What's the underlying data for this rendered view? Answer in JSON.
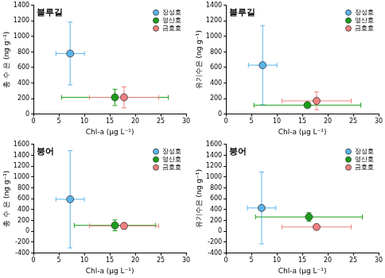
{
  "chart_data": [
    {
      "type": "scatter",
      "title": "블루길",
      "x_label": "Chl-a (μg L⁻¹)",
      "y_label": "총 수 은 (ng g⁻¹)",
      "xlim": [
        0,
        30
      ],
      "xticks": [
        0,
        5,
        10,
        15,
        20,
        25,
        30
      ],
      "ylim": [
        0,
        1400
      ],
      "yticks": [
        0,
        200,
        400,
        600,
        800,
        1000,
        1200,
        1400
      ],
      "grid": false,
      "legend": "upper right",
      "series": [
        {
          "name": "장성호",
          "color": "#5ab4e8",
          "marker": "circle",
          "x": [
            7.2
          ],
          "values": [
            780
          ],
          "x_error": [
            2.8
          ],
          "y_error": [
            405
          ]
        },
        {
          "name": "영산호",
          "color": "#1a9e1a",
          "marker": "circle",
          "x": [
            16
          ],
          "values": [
            215
          ],
          "x_error": [
            10.5
          ],
          "y_error": [
            105
          ]
        },
        {
          "name": "금호호",
          "color": "#f08080",
          "marker": "circle",
          "x": [
            17.8
          ],
          "values": [
            215
          ],
          "x_error": [
            6.8
          ],
          "y_error": [
            135
          ]
        }
      ]
    },
    {
      "type": "scatter",
      "title": "블루길",
      "x_label": "Chl-a (μg L⁻¹)",
      "y_label": "유기수은 (ng g⁻¹)",
      "xlim": [
        0,
        30
      ],
      "xticks": [
        0,
        5,
        10,
        15,
        20,
        25,
        30
      ],
      "ylim": [
        0,
        1400
      ],
      "yticks": [
        0,
        200,
        400,
        600,
        800,
        1000,
        1200,
        1400
      ],
      "grid": false,
      "legend": "upper right",
      "series": [
        {
          "name": "장성호",
          "color": "#5ab4e8",
          "marker": "circle",
          "x": [
            7.2
          ],
          "values": [
            630
          ],
          "x_error": [
            2.8
          ],
          "y_error": [
            510
          ]
        },
        {
          "name": "영산호",
          "color": "#1a9e1a",
          "marker": "circle",
          "x": [
            16
          ],
          "values": [
            115
          ],
          "x_error": [
            10.5
          ],
          "y_error": [
            20
          ]
        },
        {
          "name": "금호호",
          "color": "#f08080",
          "marker": "circle",
          "x": [
            17.8
          ],
          "values": [
            170
          ],
          "x_error": [
            6.8
          ],
          "y_error": [
            115
          ]
        }
      ]
    },
    {
      "type": "scatter",
      "title": "붕어",
      "x_label": "Chl-a (μg L⁻¹)",
      "y_label": "총 수 은 (ng g⁻¹)",
      "xlim": [
        0,
        30
      ],
      "xticks": [
        0,
        5,
        10,
        15,
        20,
        25,
        30
      ],
      "ylim": [
        -400,
        1600
      ],
      "yticks": [
        -400,
        -200,
        0,
        200,
        400,
        600,
        800,
        1000,
        1200,
        1400,
        1600
      ],
      "grid": false,
      "legend": "upper right",
      "series": [
        {
          "name": "장성호",
          "color": "#5ab4e8",
          "marker": "circle",
          "x": [
            7.2
          ],
          "values": [
            590
          ],
          "x_error": [
            2.8
          ],
          "y_error": [
            895
          ]
        },
        {
          "name": "영산호",
          "color": "#1a9e1a",
          "marker": "circle",
          "x": [
            16
          ],
          "values": [
            110
          ],
          "x_error": [
            8
          ],
          "y_error": [
            100
          ]
        },
        {
          "name": "금호호",
          "color": "#f08080",
          "marker": "circle",
          "x": [
            17.8
          ],
          "values": [
            100
          ],
          "x_error": [
            6.8
          ],
          "y_error": [
            60
          ]
        }
      ]
    },
    {
      "type": "scatter",
      "title": "붕어",
      "x_label": "Chl-a (μg L⁻¹)",
      "y_label": "유기수은 (ng g⁻¹)",
      "xlim": [
        0,
        30
      ],
      "xticks": [
        0,
        5,
        10,
        15,
        20,
        25,
        30
      ],
      "ylim": [
        -400,
        1600
      ],
      "yticks": [
        -400,
        -200,
        0,
        200,
        400,
        600,
        800,
        1000,
        1200,
        1400,
        1600
      ],
      "grid": false,
      "legend": "upper right",
      "series": [
        {
          "name": "장성호",
          "color": "#5ab4e8",
          "marker": "circle",
          "x": [
            7
          ],
          "values": [
            430
          ],
          "x_error": [
            2.8
          ],
          "y_error": [
            660
          ]
        },
        {
          "name": "영산호",
          "color": "#1a9e1a",
          "marker": "circle",
          "x": [
            16.3
          ],
          "values": [
            265
          ],
          "x_error": [
            10.5
          ],
          "y_error": [
            80
          ]
        },
        {
          "name": "금호호",
          "color": "#f08080",
          "marker": "circle",
          "x": [
            17.8
          ],
          "values": [
            80
          ],
          "x_error": [
            6.8
          ],
          "y_error": [
            40
          ]
        }
      ]
    }
  ]
}
